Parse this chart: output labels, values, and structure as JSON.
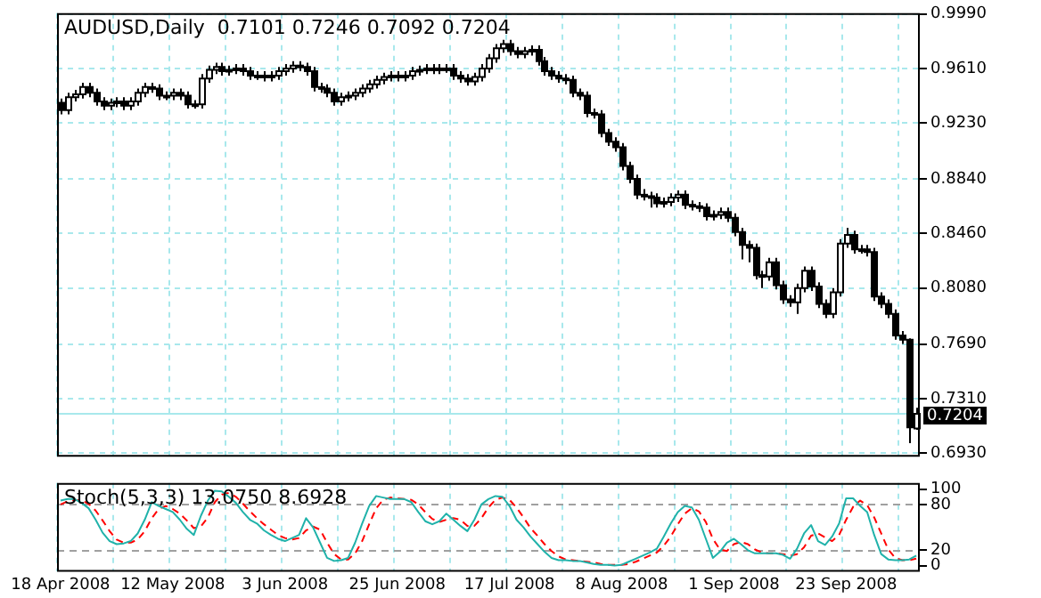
{
  "chart_data": [
    {
      "type": "candlestick",
      "title": "AUDUSD,Daily  0.7101 0.7246 0.7092 0.7204",
      "categories": [
        "18 Apr 2008",
        null,
        null,
        null,
        null,
        null,
        null,
        null,
        null,
        null,
        null,
        null,
        null,
        null,
        null,
        null,
        "12 May 2008",
        null,
        null,
        null,
        null,
        null,
        null,
        null,
        null,
        null,
        null,
        null,
        null,
        null,
        null,
        null,
        "3 Jun 2008",
        null,
        null,
        null,
        null,
        null,
        null,
        null,
        null,
        null,
        null,
        null,
        null,
        null,
        null,
        null,
        "25 Jun 2008",
        null,
        null,
        null,
        null,
        null,
        null,
        null,
        null,
        null,
        null,
        null,
        null,
        null,
        null,
        null,
        "17 Jul 2008",
        null,
        null,
        null,
        null,
        null,
        null,
        null,
        null,
        null,
        null,
        null,
        null,
        null,
        null,
        null,
        "8 Aug 2008",
        null,
        null,
        null,
        null,
        null,
        null,
        null,
        null,
        null,
        null,
        null,
        null,
        null,
        null,
        null,
        "1 Sep 2008",
        null,
        null,
        null,
        null,
        null,
        null,
        null,
        null,
        null,
        null,
        null,
        null,
        null,
        null,
        null,
        "23 Sep 2008",
        null,
        null,
        null,
        null,
        null,
        null,
        null,
        null,
        null,
        null
      ],
      "ohlc": [
        [
          0.937,
          0.94,
          0.929,
          0.932
        ],
        [
          0.932,
          0.944,
          0.929,
          0.941
        ],
        [
          0.941,
          0.946,
          0.938,
          0.943
        ],
        [
          0.943,
          0.951,
          0.94,
          0.948
        ],
        [
          0.948,
          0.951,
          0.941,
          0.944
        ],
        [
          0.944,
          0.947,
          0.935,
          0.938
        ],
        [
          0.938,
          0.941,
          0.932,
          0.935
        ],
        [
          0.935,
          0.94,
          0.932,
          0.937
        ],
        [
          0.937,
          0.941,
          0.934,
          0.938
        ],
        [
          0.938,
          0.941,
          0.932,
          0.935
        ],
        [
          0.935,
          0.941,
          0.932,
          0.938
        ],
        [
          0.938,
          0.947,
          0.935,
          0.944
        ],
        [
          0.944,
          0.951,
          0.941,
          0.948
        ],
        [
          0.948,
          0.951,
          0.944,
          0.947
        ],
        [
          0.947,
          0.95,
          0.939,
          0.942
        ],
        [
          0.942,
          0.945,
          0.939,
          0.942
        ],
        [
          0.942,
          0.947,
          0.939,
          0.944
        ],
        [
          0.944,
          0.947,
          0.939,
          0.942
        ],
        [
          0.942,
          0.945,
          0.933,
          0.936
        ],
        [
          0.936,
          0.939,
          0.933,
          0.936
        ],
        [
          0.936,
          0.957,
          0.933,
          0.954
        ],
        [
          0.954,
          0.963,
          0.951,
          0.96
        ],
        [
          0.96,
          0.965,
          0.957,
          0.962
        ],
        [
          0.962,
          0.965,
          0.956,
          0.959
        ],
        [
          0.959,
          0.963,
          0.956,
          0.96
        ],
        [
          0.96,
          0.964,
          0.957,
          0.961
        ],
        [
          0.961,
          0.964,
          0.956,
          0.959
        ],
        [
          0.959,
          0.962,
          0.953,
          0.956
        ],
        [
          0.956,
          0.959,
          0.953,
          0.956
        ],
        [
          0.956,
          0.959,
          0.952,
          0.955
        ],
        [
          0.955,
          0.959,
          0.952,
          0.956
        ],
        [
          0.956,
          0.962,
          0.953,
          0.959
        ],
        [
          0.959,
          0.964,
          0.956,
          0.961
        ],
        [
          0.961,
          0.966,
          0.958,
          0.963
        ],
        [
          0.963,
          0.966,
          0.959,
          0.962
        ],
        [
          0.962,
          0.965,
          0.956,
          0.959
        ],
        [
          0.959,
          0.962,
          0.945,
          0.948
        ],
        [
          0.948,
          0.951,
          0.944,
          0.947
        ],
        [
          0.947,
          0.95,
          0.941,
          0.944
        ],
        [
          0.944,
          0.947,
          0.935,
          0.938
        ],
        [
          0.938,
          0.944,
          0.935,
          0.941
        ],
        [
          0.941,
          0.945,
          0.938,
          0.942
        ],
        [
          0.942,
          0.947,
          0.939,
          0.944
        ],
        [
          0.944,
          0.95,
          0.941,
          0.947
        ],
        [
          0.947,
          0.953,
          0.944,
          0.95
        ],
        [
          0.95,
          0.956,
          0.947,
          0.953
        ],
        [
          0.953,
          0.958,
          0.95,
          0.955
        ],
        [
          0.955,
          0.959,
          0.952,
          0.956
        ],
        [
          0.956,
          0.959,
          0.952,
          0.955
        ],
        [
          0.955,
          0.959,
          0.952,
          0.956
        ],
        [
          0.956,
          0.962,
          0.953,
          0.959
        ],
        [
          0.959,
          0.963,
          0.956,
          0.96
        ],
        [
          0.96,
          0.964,
          0.957,
          0.961
        ],
        [
          0.961,
          0.964,
          0.957,
          0.96
        ],
        [
          0.96,
          0.964,
          0.957,
          0.961
        ],
        [
          0.961,
          0.964,
          0.958,
          0.961
        ],
        [
          0.961,
          0.964,
          0.953,
          0.956
        ],
        [
          0.956,
          0.959,
          0.951,
          0.954
        ],
        [
          0.954,
          0.957,
          0.949,
          0.952
        ],
        [
          0.952,
          0.958,
          0.949,
          0.955
        ],
        [
          0.955,
          0.964,
          0.952,
          0.961
        ],
        [
          0.961,
          0.971,
          0.958,
          0.968
        ],
        [
          0.968,
          0.978,
          0.965,
          0.975
        ],
        [
          0.975,
          0.981,
          0.972,
          0.978
        ],
        [
          0.978,
          0.981,
          0.97,
          0.973
        ],
        [
          0.973,
          0.976,
          0.968,
          0.971
        ],
        [
          0.971,
          0.976,
          0.968,
          0.973
        ],
        [
          0.973,
          0.977,
          0.97,
          0.974
        ],
        [
          0.974,
          0.977,
          0.963,
          0.966
        ],
        [
          0.966,
          0.969,
          0.956,
          0.959
        ],
        [
          0.959,
          0.962,
          0.953,
          0.956
        ],
        [
          0.956,
          0.959,
          0.951,
          0.954
        ],
        [
          0.954,
          0.957,
          0.95,
          0.953
        ],
        [
          0.953,
          0.956,
          0.941,
          0.944
        ],
        [
          0.944,
          0.947,
          0.939,
          0.942
        ],
        [
          0.942,
          0.945,
          0.927,
          0.93
        ],
        [
          0.93,
          0.933,
          0.926,
          0.929
        ],
        [
          0.929,
          0.932,
          0.913,
          0.916
        ],
        [
          0.916,
          0.919,
          0.907,
          0.91
        ],
        [
          0.91,
          0.913,
          0.903,
          0.906
        ],
        [
          0.906,
          0.909,
          0.89,
          0.893
        ],
        [
          0.893,
          0.896,
          0.881,
          0.884
        ],
        [
          0.884,
          0.887,
          0.87,
          0.873
        ],
        [
          0.873,
          0.877,
          0.869,
          0.872
        ],
        [
          0.872,
          0.875,
          0.864,
          0.871
        ],
        [
          0.871,
          0.874,
          0.864,
          0.867
        ],
        [
          0.867,
          0.871,
          0.864,
          0.868
        ],
        [
          0.868,
          0.874,
          0.865,
          0.871
        ],
        [
          0.871,
          0.876,
          0.868,
          0.873
        ],
        [
          0.873,
          0.876,
          0.863,
          0.866
        ],
        [
          0.866,
          0.869,
          0.862,
          0.865
        ],
        [
          0.865,
          0.868,
          0.861,
          0.864
        ],
        [
          0.864,
          0.867,
          0.855,
          0.858
        ],
        [
          0.858,
          0.862,
          0.855,
          0.859
        ],
        [
          0.859,
          0.864,
          0.856,
          0.861
        ],
        [
          0.861,
          0.864,
          0.854,
          0.857
        ],
        [
          0.857,
          0.86,
          0.844,
          0.847
        ],
        [
          0.847,
          0.85,
          0.828,
          0.838
        ],
        [
          0.838,
          0.841,
          0.826,
          0.836
        ],
        [
          0.836,
          0.839,
          0.814,
          0.817
        ],
        [
          0.817,
          0.82,
          0.808,
          0.816
        ],
        [
          0.816,
          0.829,
          0.813,
          0.826
        ],
        [
          0.826,
          0.829,
          0.807,
          0.81
        ],
        [
          0.81,
          0.813,
          0.797,
          0.8
        ],
        [
          0.8,
          0.803,
          0.795,
          0.798
        ],
        [
          0.798,
          0.811,
          0.79,
          0.808
        ],
        [
          0.808,
          0.823,
          0.805,
          0.82
        ],
        [
          0.82,
          0.823,
          0.806,
          0.809
        ],
        [
          0.809,
          0.812,
          0.794,
          0.797
        ],
        [
          0.797,
          0.8,
          0.787,
          0.79
        ],
        [
          0.79,
          0.808,
          0.787,
          0.805
        ],
        [
          0.805,
          0.842,
          0.802,
          0.839
        ],
        [
          0.839,
          0.85,
          0.836,
          0.845
        ],
        [
          0.845,
          0.848,
          0.832,
          0.835
        ],
        [
          0.835,
          0.838,
          0.832,
          0.835
        ],
        [
          0.835,
          0.838,
          0.83,
          0.833
        ],
        [
          0.833,
          0.836,
          0.799,
          0.802
        ],
        [
          0.802,
          0.805,
          0.794,
          0.797
        ],
        [
          0.797,
          0.8,
          0.787,
          0.79
        ],
        [
          0.79,
          0.793,
          0.772,
          0.775
        ],
        [
          0.775,
          0.778,
          0.769,
          0.772
        ],
        [
          0.772,
          0.773,
          0.7,
          0.711
        ],
        [
          0.7101,
          0.7246,
          0.7092,
          0.7204
        ]
      ],
      "ylim": [
        0.6905,
        0.9995
      ],
      "yticks": [
        {
          "value": 0.999,
          "label": "0.9990"
        },
        {
          "value": 0.961,
          "label": "0.9610"
        },
        {
          "value": 0.923,
          "label": "0.9230"
        },
        {
          "value": 0.884,
          "label": "0.8840"
        },
        {
          "value": 0.846,
          "label": "0.8460"
        },
        {
          "value": 0.808,
          "label": "0.8080"
        },
        {
          "value": 0.769,
          "label": "0.7690"
        },
        {
          "value": 0.731,
          "label": "0.7310"
        },
        {
          "value": 0.693,
          "label": "0.6930"
        }
      ],
      "ref_lines": [
        {
          "axis": "y",
          "value": 0.7204,
          "label": "0.7204",
          "color": "#a8e8ec"
        }
      ],
      "grid": true,
      "tick_labels": "y"
    },
    {
      "type": "line",
      "title": "Stoch(5,3,3) 13.0750 8.6928",
      "categories": [
        "18 Apr 2008",
        null,
        null,
        null,
        null,
        null,
        null,
        null,
        null,
        null,
        null,
        null,
        null,
        null,
        null,
        null,
        "12 May 2008",
        null,
        null,
        null,
        null,
        null,
        null,
        null,
        null,
        null,
        null,
        null,
        null,
        null,
        null,
        null,
        "3 Jun 2008",
        null,
        null,
        null,
        null,
        null,
        null,
        null,
        null,
        null,
        null,
        null,
        null,
        null,
        null,
        null,
        "25 Jun 2008",
        null,
        null,
        null,
        null,
        null,
        null,
        null,
        null,
        null,
        null,
        null,
        null,
        null,
        null,
        null,
        "17 Jul 2008",
        null,
        null,
        null,
        null,
        null,
        null,
        null,
        null,
        null,
        null,
        null,
        null,
        null,
        null,
        null,
        "8 Aug 2008",
        null,
        null,
        null,
        null,
        null,
        null,
        null,
        null,
        null,
        null,
        null,
        null,
        null,
        null,
        null,
        "1 Sep 2008",
        null,
        null,
        null,
        null,
        null,
        null,
        null,
        null,
        null,
        null,
        null,
        null,
        null,
        null,
        null,
        "23 Sep 2008",
        null,
        null,
        null,
        null,
        null,
        null,
        null,
        null,
        null,
        null
      ],
      "series": [
        {
          "color": "#20b2aa",
          "line_style": "solid",
          "values": [
            85,
            87,
            87,
            82,
            75,
            60,
            43,
            32,
            28,
            29,
            32,
            42,
            60,
            83,
            78,
            74,
            70,
            60,
            48,
            40,
            65,
            85,
            98,
            97,
            90,
            82,
            70,
            60,
            55,
            46,
            40,
            35,
            32,
            36,
            40,
            62,
            50,
            30,
            10,
            6,
            7,
            10,
            30,
            55,
            78,
            91,
            89,
            87,
            87,
            87,
            83,
            70,
            58,
            54,
            58,
            68,
            60,
            52,
            45,
            60,
            80,
            87,
            91,
            90,
            78,
            60,
            50,
            38,
            28,
            18,
            10,
            7,
            7,
            6,
            6,
            4,
            2,
            1,
            1,
            0,
            1,
            5,
            9,
            13,
            17,
            22,
            38,
            55,
            70,
            78,
            76,
            60,
            35,
            10,
            18,
            30,
            35,
            28,
            20,
            16,
            16,
            16,
            16,
            14,
            9,
            22,
            42,
            53,
            32,
            27,
            38,
            55,
            88,
            88,
            78,
            70,
            40,
            15,
            8,
            7,
            7,
            8,
            13
          ]
        },
        {
          "color": "#ff0000",
          "line_style": "dashed",
          "values": [
            80,
            84,
            86,
            85,
            81,
            72,
            59,
            45,
            34,
            30,
            30,
            34,
            45,
            62,
            74,
            78,
            74,
            68,
            59,
            49,
            51,
            63,
            83,
            93,
            95,
            90,
            81,
            71,
            62,
            54,
            47,
            40,
            36,
            34,
            36,
            46,
            51,
            47,
            30,
            15,
            8,
            8,
            16,
            32,
            54,
            75,
            86,
            89,
            88,
            87,
            86,
            80,
            70,
            61,
            57,
            60,
            62,
            60,
            52,
            52,
            62,
            76,
            86,
            89,
            86,
            76,
            63,
            49,
            39,
            28,
            19,
            12,
            8,
            7,
            6,
            5,
            4,
            2,
            1,
            1,
            1,
            2,
            5,
            9,
            13,
            17,
            26,
            38,
            54,
            68,
            75,
            71,
            57,
            35,
            21,
            19,
            28,
            31,
            28,
            21,
            17,
            16,
            16,
            15,
            13,
            15,
            24,
            39,
            42,
            37,
            32,
            40,
            60,
            77,
            85,
            79,
            63,
            42,
            21,
            10,
            7,
            7,
            9
          ]
        }
      ],
      "ylim": [
        -8,
        108
      ],
      "yticks": [
        0,
        20,
        80,
        100
      ],
      "ref_lines": [
        {
          "axis": "y",
          "value": 20,
          "color": "#a0a0a0",
          "line_style": "dashed"
        },
        {
          "axis": "y",
          "value": 80,
          "color": "#a0a0a0",
          "line_style": "dashed"
        }
      ],
      "grid": "x"
    }
  ]
}
